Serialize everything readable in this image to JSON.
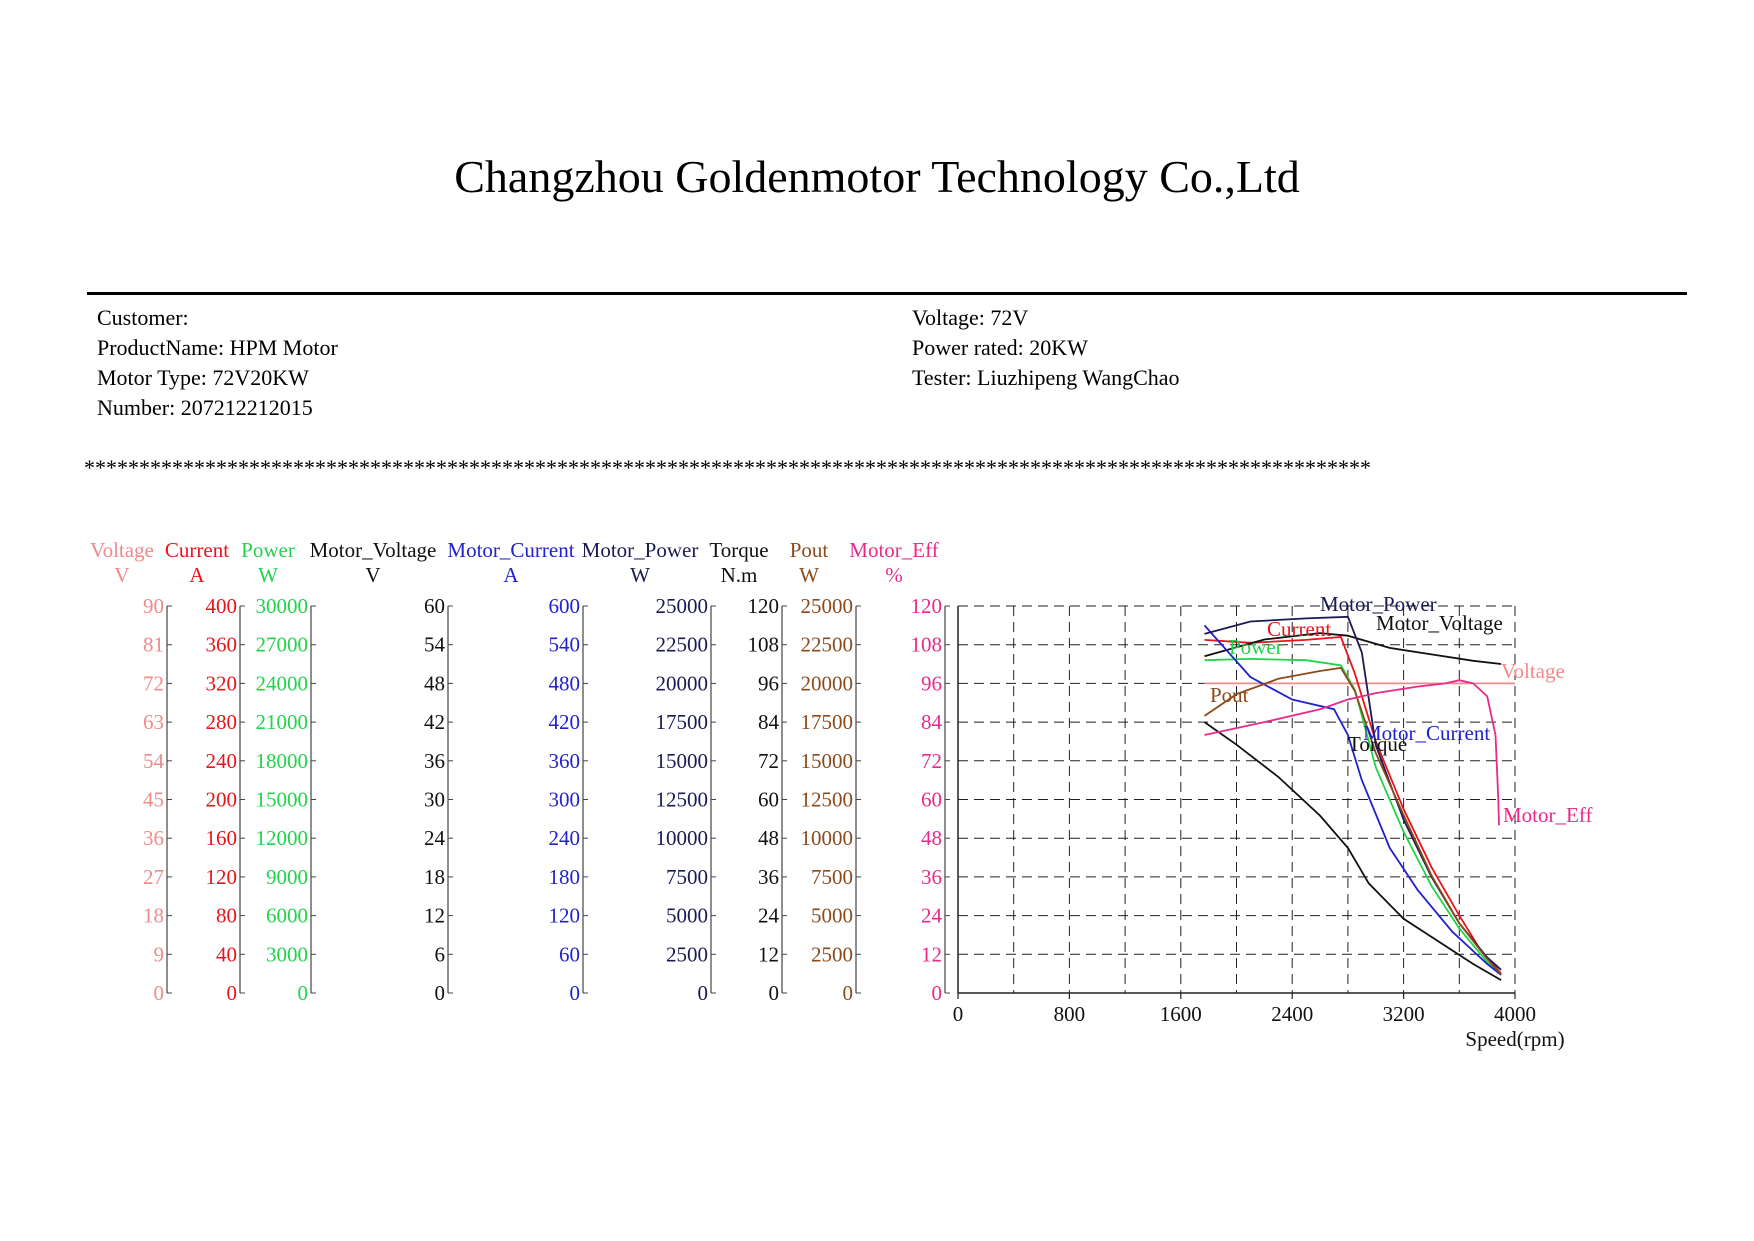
{
  "header": {
    "title": "Changzhou Goldenmotor Technology Co.,Ltd"
  },
  "info": {
    "customer": "Customer:",
    "product": "ProductName: HPM Motor",
    "motor_type": "Motor Type: 72V20KW",
    "number": "Number: 207212212015",
    "voltage": "Voltage: 72V",
    "power": "Power rated: 20KW",
    "tester": "Tester: Liuzhipeng WangChao"
  },
  "separator": "*********************************************************************************************************************",
  "colors": {
    "voltage": "#f08a8a",
    "current": "#e8141a",
    "power": "#22d34a",
    "motor_voltage": "#111111",
    "motor_current": "#2222cc",
    "motor_power": "#1a1a55",
    "torque": "#111111",
    "pout": "#8b4a1c",
    "motor_eff": "#e82a8a"
  },
  "chart_data": {
    "type": "line",
    "xlabel": "Speed(rpm)",
    "xlim": [
      0,
      4000
    ],
    "xticks": [
      "0",
      "800",
      "1600",
      "2400",
      "3200",
      "4000"
    ],
    "grid": true,
    "axes": [
      {
        "key": "voltage",
        "name": "Voltage",
        "unit": "V",
        "ticks": [
          "0",
          "9",
          "18",
          "27",
          "36",
          "45",
          "54",
          "63",
          "72",
          "81",
          "90"
        ],
        "range": [
          0,
          90
        ]
      },
      {
        "key": "current",
        "name": "Current",
        "unit": "A",
        "ticks": [
          "0",
          "40",
          "80",
          "120",
          "160",
          "200",
          "240",
          "280",
          "320",
          "360",
          "400"
        ],
        "range": [
          0,
          400
        ]
      },
      {
        "key": "power",
        "name": "Power",
        "unit": "W",
        "ticks": [
          "0",
          "3000",
          "6000",
          "9000",
          "12000",
          "15000",
          "18000",
          "21000",
          "24000",
          "27000",
          "30000"
        ],
        "range": [
          0,
          30000
        ]
      },
      {
        "key": "motor_voltage",
        "name": "Motor_Voltage",
        "unit": "V",
        "ticks": [
          "0",
          "6",
          "12",
          "18",
          "24",
          "30",
          "36",
          "42",
          "48",
          "54",
          "60"
        ],
        "range": [
          0,
          60
        ]
      },
      {
        "key": "motor_current",
        "name": "Motor_Current",
        "unit": "A",
        "ticks": [
          "0",
          "60",
          "120",
          "180",
          "240",
          "300",
          "360",
          "420",
          "480",
          "540",
          "600"
        ],
        "range": [
          0,
          600
        ]
      },
      {
        "key": "motor_power",
        "name": "Motor_Power",
        "unit": "W",
        "ticks": [
          "0",
          "2500",
          "5000",
          "7500",
          "10000",
          "12500",
          "15000",
          "17500",
          "20000",
          "22500",
          "25000"
        ],
        "range": [
          0,
          25000
        ]
      },
      {
        "key": "torque",
        "name": "Torque",
        "unit": "N.m",
        "ticks": [
          "0",
          "12",
          "24",
          "36",
          "48",
          "60",
          "72",
          "84",
          "96",
          "108",
          "120"
        ],
        "range": [
          0,
          120
        ]
      },
      {
        "key": "pout",
        "name": "Pout",
        "unit": "W",
        "ticks": [
          "0",
          "2500",
          "5000",
          "7500",
          "10000",
          "12500",
          "15000",
          "17500",
          "20000",
          "22500",
          "25000"
        ],
        "range": [
          0,
          25000
        ]
      },
      {
        "key": "motor_eff",
        "name": "Motor_Eff",
        "unit": "%",
        "ticks": [
          "0",
          "12",
          "24",
          "36",
          "48",
          "60",
          "72",
          "84",
          "96",
          "108",
          "120"
        ],
        "range": [
          0,
          120
        ]
      }
    ],
    "series": [
      {
        "key": "voltage",
        "name": "Voltage",
        "axis": "voltage",
        "points": [
          [
            1770,
            72
          ],
          [
            2200,
            72
          ],
          [
            2600,
            72
          ],
          [
            3000,
            72
          ],
          [
            3400,
            72
          ],
          [
            3700,
            72
          ],
          [
            4000,
            72
          ]
        ]
      },
      {
        "key": "current",
        "name": "Current",
        "axis": "current",
        "points": [
          [
            1770,
            365
          ],
          [
            2100,
            362
          ],
          [
            2500,
            365
          ],
          [
            2750,
            368
          ],
          [
            2850,
            330
          ],
          [
            3000,
            260
          ],
          [
            3200,
            190
          ],
          [
            3400,
            130
          ],
          [
            3600,
            80
          ],
          [
            3750,
            45
          ],
          [
            3900,
            20
          ]
        ]
      },
      {
        "key": "power",
        "name": "Power",
        "axis": "power",
        "points": [
          [
            1770,
            25800
          ],
          [
            2100,
            25900
          ],
          [
            2500,
            25800
          ],
          [
            2750,
            25400
          ],
          [
            2850,
            23500
          ],
          [
            3000,
            17500
          ],
          [
            3200,
            12500
          ],
          [
            3400,
            8300
          ],
          [
            3600,
            5000
          ],
          [
            3800,
            2400
          ],
          [
            3900,
            1400
          ]
        ]
      },
      {
        "key": "motor_voltage",
        "name": "Motor_Voltage",
        "axis": "motor_voltage",
        "points": [
          [
            1770,
            52.2
          ],
          [
            2200,
            54.8
          ],
          [
            2600,
            55.8
          ],
          [
            2800,
            55.4
          ],
          [
            3100,
            53.5
          ],
          [
            3400,
            52.5
          ],
          [
            3700,
            51.5
          ],
          [
            3900,
            51
          ]
        ]
      },
      {
        "key": "motor_current",
        "name": "Motor_Current",
        "axis": "motor_current",
        "points": [
          [
            1770,
            570
          ],
          [
            2100,
            490
          ],
          [
            2400,
            455
          ],
          [
            2700,
            440
          ],
          [
            2800,
            400
          ],
          [
            2900,
            330
          ],
          [
            3100,
            225
          ],
          [
            3300,
            160
          ],
          [
            3550,
            95
          ],
          [
            3800,
            45
          ],
          [
            3900,
            28
          ]
        ]
      },
      {
        "key": "motor_power",
        "name": "Motor_Power",
        "axis": "motor_power",
        "points": [
          [
            1770,
            23200
          ],
          [
            2100,
            24000
          ],
          [
            2500,
            24200
          ],
          [
            2800,
            24300
          ],
          [
            2900,
            22000
          ],
          [
            3000,
            16000
          ],
          [
            3200,
            11200
          ],
          [
            3400,
            7500
          ],
          [
            3600,
            4500
          ],
          [
            3800,
            2300
          ],
          [
            3900,
            1500
          ]
        ]
      },
      {
        "key": "torque",
        "name": "Torque",
        "axis": "torque",
        "points": [
          [
            1770,
            84
          ],
          [
            2000,
            77
          ],
          [
            2300,
            67
          ],
          [
            2600,
            55
          ],
          [
            2800,
            45
          ],
          [
            2950,
            34
          ],
          [
            3200,
            23
          ],
          [
            3450,
            16
          ],
          [
            3700,
            9
          ],
          [
            3900,
            4
          ]
        ]
      },
      {
        "key": "pout",
        "name": "Pout",
        "axis": "pout",
        "points": [
          [
            1770,
            17900
          ],
          [
            2000,
            19300
          ],
          [
            2300,
            20300
          ],
          [
            2600,
            20800
          ],
          [
            2750,
            21000
          ],
          [
            2850,
            19500
          ],
          [
            3000,
            15500
          ],
          [
            3200,
            11500
          ],
          [
            3400,
            7600
          ],
          [
            3600,
            4500
          ],
          [
            3800,
            2200
          ],
          [
            3900,
            1200
          ]
        ]
      },
      {
        "key": "motor_eff",
        "name": "Motor_Eff",
        "axis": "motor_eff",
        "points": [
          [
            1770,
            80
          ],
          [
            2200,
            84
          ],
          [
            2600,
            88
          ],
          [
            2800,
            91
          ],
          [
            3000,
            93
          ],
          [
            3300,
            95
          ],
          [
            3500,
            96
          ],
          [
            3600,
            97
          ],
          [
            3700,
            96
          ],
          [
            3800,
            92
          ],
          [
            3860,
            80
          ],
          [
            3880,
            60
          ],
          [
            3885,
            52
          ]
        ]
      }
    ],
    "annotations": [
      "Motor_Power",
      "Motor_Voltage",
      "Current",
      "Power",
      "Voltage",
      "Pout",
      "Torque",
      "Motor_Current",
      "Motor_Eff"
    ]
  }
}
